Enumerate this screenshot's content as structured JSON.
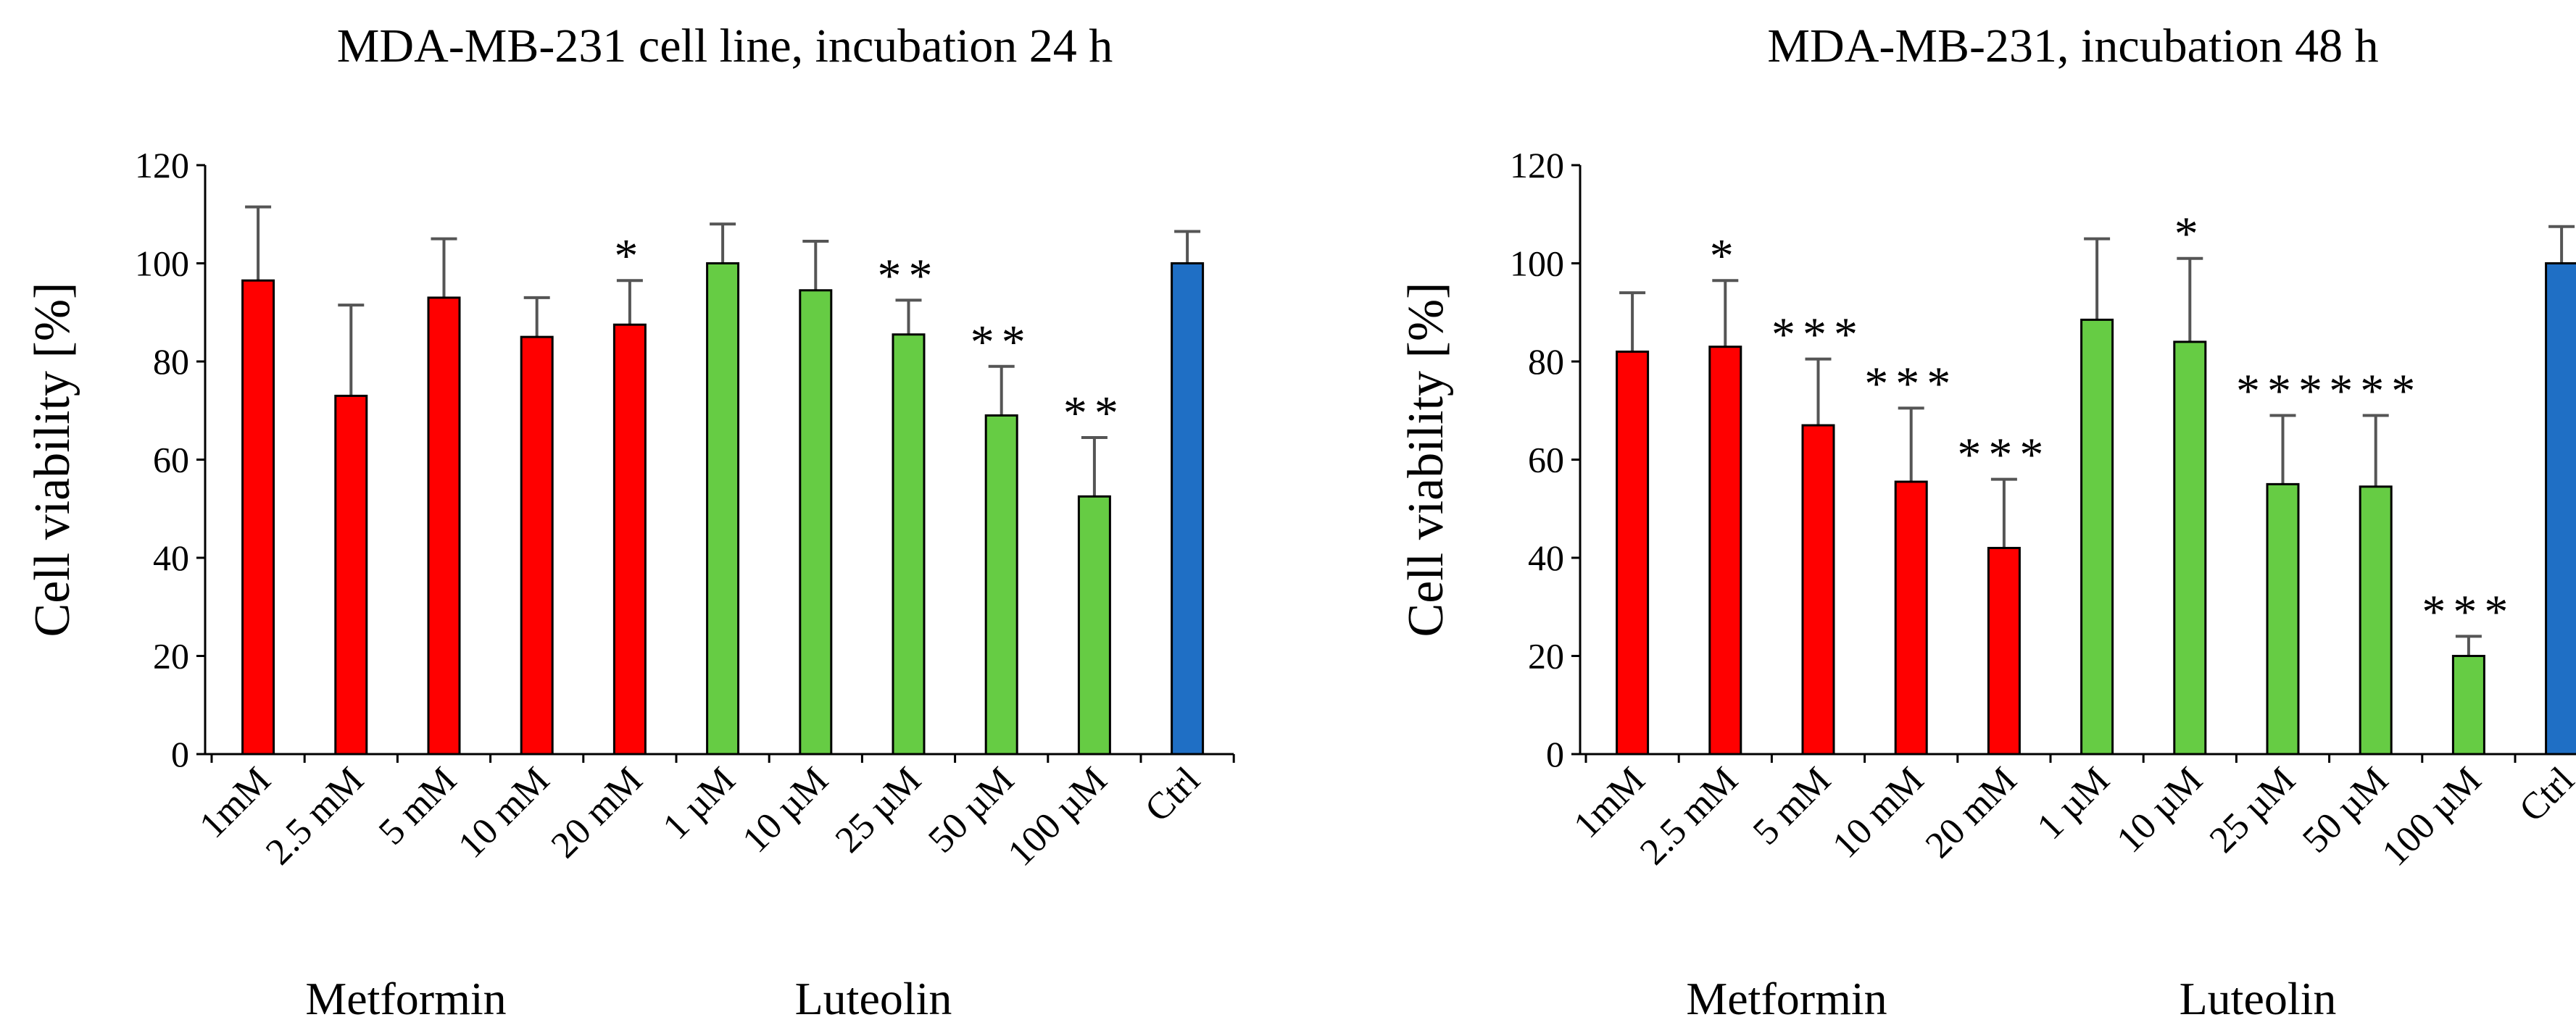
{
  "chart_data": [
    {
      "type": "bar",
      "title": "MDA-MB-231 cell line, incubation 24 h",
      "ylabel": "Cell viability [%]",
      "xlabel": "",
      "ylim": [
        0,
        120
      ],
      "yticks": [
        "0",
        "20",
        "40",
        "60",
        "80",
        "100",
        "120"
      ],
      "categories": [
        "1mM",
        "2.5 mM",
        "5 mM",
        "10 mM",
        "20 mM",
        "1 µM",
        "10 µM",
        "25 µM",
        "50 µM",
        "100 µM",
        "Ctrl"
      ],
      "values": [
        96.5,
        73,
        93,
        85,
        87.5,
        100,
        94.5,
        85.5,
        69,
        52.5,
        100
      ],
      "errors": [
        15,
        18.5,
        12,
        8,
        9,
        8,
        10,
        7,
        10,
        12,
        6.5
      ],
      "significance": [
        "",
        "",
        "",
        "",
        "*",
        "",
        "",
        "**",
        "**",
        "**",
        ""
      ],
      "groups": [
        "Metformin",
        "Metformin",
        "Metformin",
        "Metformin",
        "Metformin",
        "Luteolin",
        "Luteolin",
        "Luteolin",
        "Luteolin",
        "Luteolin",
        "Control"
      ],
      "group_labels": [
        "Metformin",
        "Luteolin"
      ],
      "colors": {
        "Metformin": "#ff0000",
        "Luteolin": "#66cc44",
        "Control": "#1f6fc5"
      },
      "grid": false,
      "legend": "none"
    },
    {
      "type": "bar",
      "title": "MDA-MB-231, incubation 48 h",
      "ylabel": "Cell viability [%]",
      "xlabel": "",
      "ylim": [
        0,
        120
      ],
      "yticks": [
        "0",
        "20",
        "40",
        "60",
        "80",
        "100",
        "120"
      ],
      "categories": [
        "1mM",
        "2.5 mM",
        "5 mM",
        "10 mM",
        "20 mM",
        "1 µM",
        "10 µM",
        "25 µM",
        "50 µM",
        "100 µM",
        "Ctrl"
      ],
      "values": [
        82,
        83,
        67,
        55.5,
        42,
        88.5,
        84,
        55,
        54.5,
        20,
        100
      ],
      "errors": [
        12,
        13.5,
        13.5,
        15,
        14,
        16.5,
        17,
        14,
        14.5,
        4,
        7.5
      ],
      "significance": [
        "",
        "*",
        "***",
        "***",
        "***",
        "",
        "*",
        "***",
        "***",
        "***",
        ""
      ],
      "groups": [
        "Metformin",
        "Metformin",
        "Metformin",
        "Metformin",
        "Metformin",
        "Luteolin",
        "Luteolin",
        "Luteolin",
        "Luteolin",
        "Luteolin",
        "Control"
      ],
      "group_labels": [
        "Metformin",
        "Luteolin"
      ],
      "colors": {
        "Metformin": "#ff0000",
        "Luteolin": "#66cc44",
        "Control": "#1f6fc5"
      },
      "grid": false,
      "legend": "none"
    }
  ]
}
